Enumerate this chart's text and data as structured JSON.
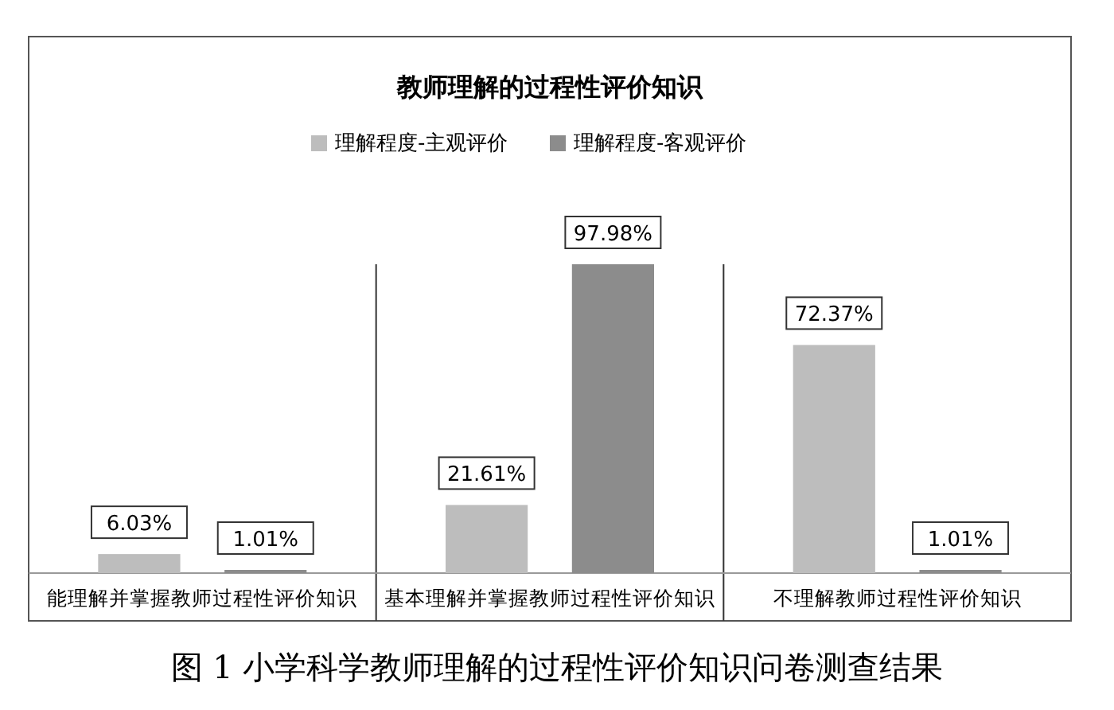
{
  "chart_data": {
    "type": "bar",
    "title": "教师理解的过程性评价知识",
    "categories": [
      "能理解并掌握教师过程性评价知识",
      "基本理解并掌握教师过程性评价知识",
      "不理解教师过程性评价知识"
    ],
    "series": [
      {
        "name": "理解程度-主观评价",
        "color": "#bdbdbd",
        "values": [
          6.03,
          21.61,
          72.37
        ],
        "value_labels": [
          "6.03%",
          "21.61%",
          "72.37%"
        ]
      },
      {
        "name": "理解程度-客观评价",
        "color": "#8c8c8c",
        "values": [
          1.01,
          97.98,
          1.01
        ],
        "value_labels": [
          "1.01%",
          "97.98%",
          "1.01%"
        ]
      }
    ],
    "legend": "top",
    "annotations": [
      "图 1  小学科学教师理解的过程性评价知识问卷测查结果"
    ]
  }
}
